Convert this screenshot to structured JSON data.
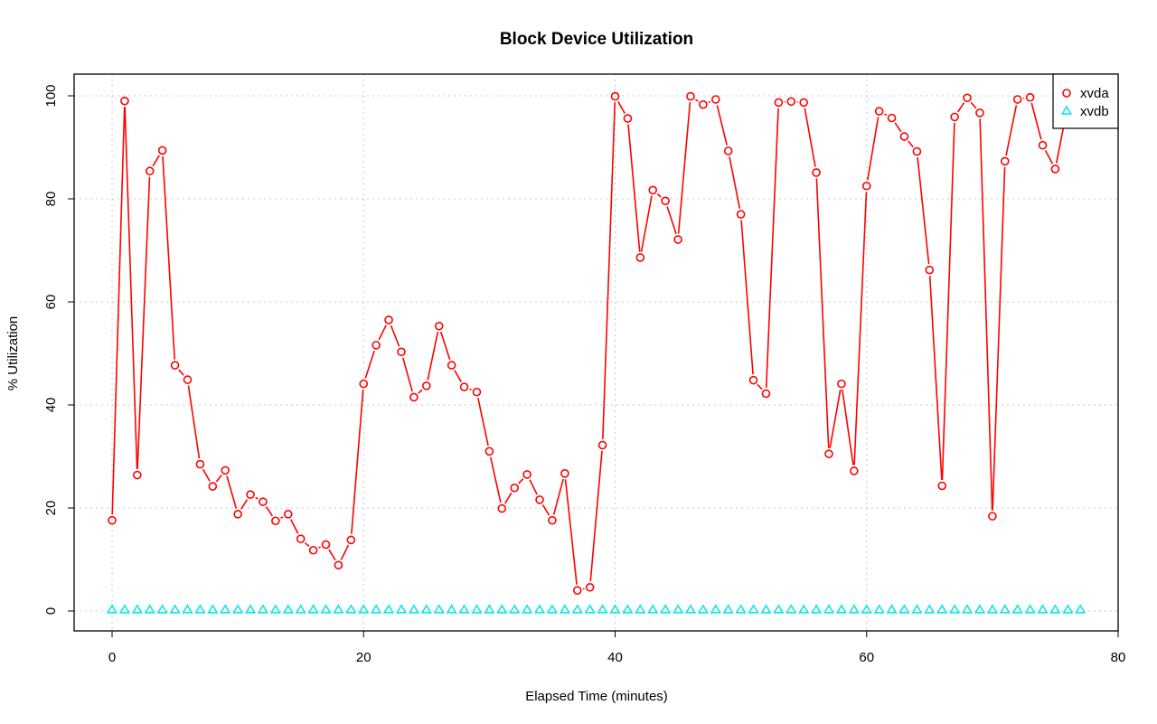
{
  "chart_data": {
    "type": "line",
    "title": "Block Device Utilization",
    "xlabel": "Elapsed Time (minutes)",
    "ylabel": "% Utilization",
    "xlim": [
      0,
      80
    ],
    "ylim": [
      0,
      100
    ],
    "x_ticks": [
      0,
      20,
      40,
      60,
      80
    ],
    "y_ticks": [
      0,
      20,
      40,
      60,
      80,
      100
    ],
    "grid": true,
    "legend_position": "top-right",
    "series": [
      {
        "name": "xvda",
        "color": "#ff0000",
        "marker": "circle",
        "values": [
          17.6,
          99.0,
          26.4,
          85.4,
          89.4,
          47.7,
          44.9,
          28.5,
          24.2,
          27.3,
          18.8,
          22.6,
          21.2,
          17.5,
          18.8,
          14.0,
          11.8,
          12.9,
          8.9,
          13.8,
          44.1,
          51.6,
          56.5,
          50.3,
          41.5,
          43.7,
          55.3,
          47.7,
          43.5,
          42.5,
          31.0,
          19.9,
          23.9,
          26.5,
          21.6,
          17.6,
          26.7,
          4.0,
          4.6,
          32.2,
          99.9,
          95.6,
          68.6,
          81.7,
          79.6,
          72.1,
          99.9,
          98.3,
          99.3,
          89.3,
          77.0,
          44.8,
          42.2,
          98.7,
          98.9,
          98.7,
          85.1,
          30.5,
          44.1,
          27.2,
          82.5,
          97.0,
          95.7,
          92.1,
          89.2,
          66.2,
          24.3,
          95.9,
          99.6,
          96.7,
          18.4,
          87.3,
          99.3,
          99.7,
          90.4,
          85.8,
          98.2,
          98.3
        ]
      },
      {
        "name": "xvdb",
        "color": "#00e5e5",
        "marker": "triangle",
        "values": [
          0.2,
          0.2,
          0.2,
          0.2,
          0.2,
          0.2,
          0.2,
          0.2,
          0.2,
          0.2,
          0.2,
          0.2,
          0.2,
          0.2,
          0.2,
          0.2,
          0.2,
          0.2,
          0.2,
          0.2,
          0.2,
          0.2,
          0.2,
          0.2,
          0.2,
          0.2,
          0.2,
          0.2,
          0.2,
          0.2,
          0.2,
          0.2,
          0.2,
          0.2,
          0.2,
          0.2,
          0.2,
          0.2,
          0.2,
          0.2,
          0.2,
          0.2,
          0.2,
          0.2,
          0.2,
          0.2,
          0.2,
          0.2,
          0.2,
          0.2,
          0.2,
          0.2,
          0.2,
          0.2,
          0.2,
          0.2,
          0.2,
          0.2,
          0.2,
          0.2,
          0.2,
          0.2,
          0.2,
          0.2,
          0.2,
          0.2,
          0.2,
          0.2,
          0.2,
          0.2,
          0.2,
          0.2,
          0.2,
          0.2,
          0.2,
          0.2,
          0.2,
          0.2
        ]
      }
    ]
  }
}
